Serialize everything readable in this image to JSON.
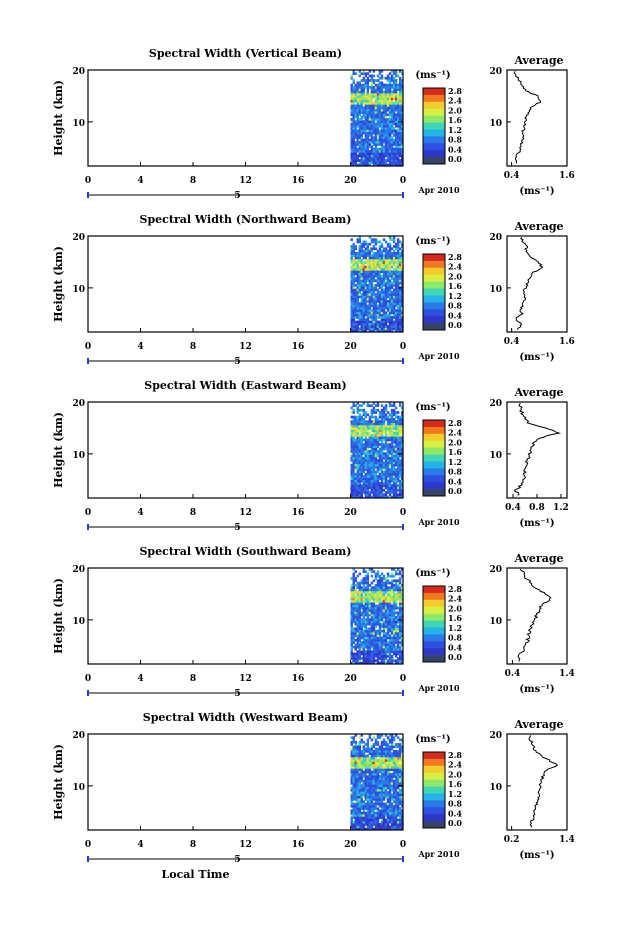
{
  "figure": {
    "xlabel": "Local Time",
    "date_label": "Apr 2010",
    "day_label": "5",
    "colorbar_unit": "(ms⁻¹)",
    "colorbar_ticks": [
      "2.8",
      "2.4",
      "2.0",
      "1.6",
      "1.2",
      "0.8",
      "0.4",
      "0.0"
    ],
    "colorbar_colors": [
      "#d62a1e",
      "#f07a22",
      "#f5cc2e",
      "#d8ee40",
      "#8ee86a",
      "#3fd6b5",
      "#25b4e8",
      "#2a7be6",
      "#2f4fe0",
      "#2e37c8",
      "#334466"
    ],
    "avg_title": "Average",
    "avg_xlabel": "(ms⁻¹)",
    "ylabel": "Height (km)"
  },
  "chart_data": [
    {
      "type": "heatmap",
      "title": "Spectral Width (Vertical Beam)",
      "xlabel": "Local Time",
      "ylabel": "Height (km)",
      "xticks": [
        "0",
        "4",
        "8",
        "12",
        "16",
        "20",
        "0"
      ],
      "xlim": [
        0,
        24
      ],
      "yticks": [
        "10",
        "20"
      ],
      "ylim": [
        1.5,
        20
      ],
      "data_x_range": [
        20,
        24
      ],
      "avg_profile": {
        "title": "Average",
        "xlabel": "(ms⁻¹)",
        "xticks": [
          "0.4",
          "1.6"
        ],
        "xlim": [
          0.3,
          1.6
        ],
        "yticks": [
          "10",
          "20"
        ],
        "ylim": [
          1.5,
          20
        ],
        "height": [
          2,
          3,
          4,
          5,
          6,
          7,
          8,
          9,
          10,
          11,
          12,
          13,
          14,
          15,
          16,
          17,
          18,
          19,
          20
        ],
        "value": [
          0.5,
          0.48,
          0.55,
          0.6,
          0.62,
          0.65,
          0.62,
          0.68,
          0.7,
          0.72,
          0.78,
          0.85,
          1.05,
          0.95,
          0.7,
          0.65,
          0.55,
          0.5,
          0.45
        ]
      }
    },
    {
      "type": "heatmap",
      "title": "Spectral Width (Northward Beam)",
      "xlabel": "Local Time",
      "ylabel": "Height (km)",
      "xticks": [
        "0",
        "4",
        "8",
        "12",
        "16",
        "20",
        "0"
      ],
      "xlim": [
        0,
        24
      ],
      "yticks": [
        "10",
        "20"
      ],
      "ylim": [
        1.5,
        20
      ],
      "data_x_range": [
        20,
        24
      ],
      "avg_profile": {
        "title": "Average",
        "xlabel": "(ms⁻¹)",
        "xticks": [
          "0.4",
          "1.6"
        ],
        "xlim": [
          0.3,
          1.6
        ],
        "yticks": [
          "10",
          "20"
        ],
        "ylim": [
          1.5,
          20
        ],
        "height": [
          2,
          3,
          4,
          5,
          6,
          7,
          8,
          9,
          10,
          11,
          12,
          13,
          14,
          15,
          16,
          17,
          18,
          19,
          20
        ],
        "value": [
          0.55,
          0.6,
          0.5,
          0.62,
          0.6,
          0.65,
          0.68,
          0.66,
          0.7,
          0.75,
          0.8,
          0.88,
          1.05,
          1.0,
          0.8,
          0.7,
          0.72,
          0.65,
          0.6
        ]
      }
    },
    {
      "type": "heatmap",
      "title": "Spectral Width (Eastward Beam)",
      "xlabel": "Local Time",
      "ylabel": "Height (km)",
      "xticks": [
        "0",
        "4",
        "8",
        "12",
        "16",
        "20",
        "0"
      ],
      "xlim": [
        0,
        24
      ],
      "yticks": [
        "10",
        "20"
      ],
      "ylim": [
        1.5,
        20
      ],
      "data_x_range": [
        20,
        24
      ],
      "avg_profile": {
        "title": "Average",
        "xlabel": "(ms⁻¹)",
        "xticks": [
          "0.4",
          "0.8",
          "1.2"
        ],
        "xlim": [
          0.3,
          1.3
        ],
        "yticks": [
          "10",
          "20"
        ],
        "ylim": [
          1.5,
          20
        ],
        "height": [
          2,
          3,
          4,
          5,
          6,
          7,
          8,
          9,
          10,
          11,
          12,
          13,
          14,
          15,
          16,
          17,
          18,
          19,
          20
        ],
        "value": [
          0.5,
          0.45,
          0.55,
          0.58,
          0.6,
          0.6,
          0.62,
          0.65,
          0.68,
          0.72,
          0.75,
          0.82,
          1.15,
          0.95,
          0.65,
          0.6,
          0.55,
          0.52,
          0.5
        ]
      }
    },
    {
      "type": "heatmap",
      "title": "Spectral Width (Southward Beam)",
      "xlabel": "Local Time",
      "ylabel": "Height (km)",
      "xticks": [
        "0",
        "4",
        "8",
        "12",
        "16",
        "20",
        "0"
      ],
      "xlim": [
        0,
        24
      ],
      "yticks": [
        "10",
        "20"
      ],
      "ylim": [
        1.5,
        20
      ],
      "data_x_range": [
        20,
        24
      ],
      "avg_profile": {
        "title": "Average",
        "xlabel": "(ms⁻¹)",
        "xticks": [
          "0.4",
          "1.4"
        ],
        "xlim": [
          0.3,
          1.4
        ],
        "yticks": [
          "10",
          "20"
        ],
        "ylim": [
          1.5,
          20
        ],
        "height": [
          2,
          3,
          4,
          5,
          6,
          7,
          8,
          9,
          10,
          11,
          12,
          13,
          14,
          15,
          16,
          17,
          18,
          19,
          20
        ],
        "value": [
          0.55,
          0.5,
          0.6,
          0.62,
          0.68,
          0.7,
          0.72,
          0.75,
          0.8,
          0.85,
          0.9,
          0.95,
          1.1,
          1.0,
          0.85,
          0.75,
          0.65,
          0.6,
          0.55
        ]
      }
    },
    {
      "type": "heatmap",
      "title": "Spectral Width (Westward Beam)",
      "xlabel": "Local Time",
      "ylabel": "Height (km)",
      "xticks": [
        "0",
        "4",
        "8",
        "12",
        "16",
        "20",
        "0"
      ],
      "xlim": [
        0,
        24
      ],
      "yticks": [
        "10",
        "20"
      ],
      "ylim": [
        1.5,
        20
      ],
      "data_x_range": [
        20,
        24
      ],
      "avg_profile": {
        "title": "Average",
        "xlabel": "(ms⁻¹)",
        "xticks": [
          "0.2",
          "1.4"
        ],
        "xlim": [
          0.1,
          1.4
        ],
        "yticks": [
          "10",
          "20"
        ],
        "ylim": [
          1.5,
          20
        ],
        "height": [
          2,
          3,
          4,
          5,
          6,
          7,
          8,
          9,
          10,
          11,
          12,
          13,
          14,
          15,
          16,
          17,
          18,
          19,
          20
        ],
        "value": [
          0.65,
          0.6,
          0.7,
          0.68,
          0.72,
          0.75,
          0.78,
          0.8,
          0.82,
          0.85,
          0.88,
          0.95,
          1.2,
          1.0,
          0.8,
          0.7,
          0.65,
          0.6,
          0.6
        ]
      }
    }
  ]
}
